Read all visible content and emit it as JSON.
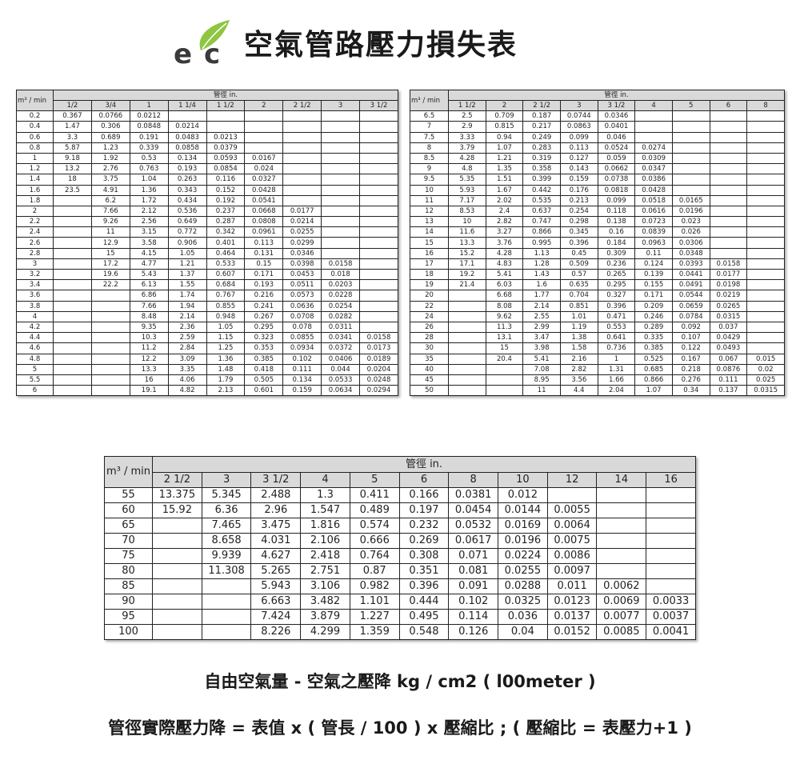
{
  "header": {
    "title": "空氣管路壓力損失表",
    "logo_text": "ec",
    "colors": {
      "logo_green": "#8dc63f",
      "logo_dark": "#3a3a3a",
      "header_fill": "#d9d9d9"
    }
  },
  "flow_label": "m³ / min",
  "diameter_label": "管徑 in.",
  "table1": {
    "columns": [
      "1/2",
      "3/4",
      "1",
      "1 1/4",
      "1 1/2",
      "2",
      "2 1/2",
      "3",
      "3 1/2"
    ],
    "rows": [
      [
        "0.2",
        "0.367",
        "0.0766",
        "0.0212",
        "",
        "",
        "",
        "",
        "",
        ""
      ],
      [
        "0.4",
        "1.47",
        "0.306",
        "0.0848",
        "0.0214",
        "",
        "",
        "",
        "",
        ""
      ],
      [
        "0.6",
        "3.3",
        "0.689",
        "0.191",
        "0.0483",
        "0.0213",
        "",
        "",
        "",
        ""
      ],
      [
        "0.8",
        "5.87",
        "1.23",
        "0.339",
        "0.0858",
        "0.0379",
        "",
        "",
        "",
        ""
      ],
      [
        "1",
        "9.18",
        "1.92",
        "0.53",
        "0.134",
        "0.0593",
        "0.0167",
        "",
        "",
        ""
      ],
      [
        "1.2",
        "13.2",
        "2.76",
        "0.763",
        "0.193",
        "0.0854",
        "0.024",
        "",
        "",
        ""
      ],
      [
        "1.4",
        "18",
        "3.75",
        "1.04",
        "0.263",
        "0.116",
        "0.0327",
        "",
        "",
        ""
      ],
      [
        "1.6",
        "23.5",
        "4.91",
        "1.36",
        "0.343",
        "0.152",
        "0.0428",
        "",
        "",
        ""
      ],
      [
        "1.8",
        "",
        "6.2",
        "1.72",
        "0.434",
        "0.192",
        "0.0541",
        "",
        "",
        ""
      ],
      [
        "2",
        "",
        "7.66",
        "2.12",
        "0.536",
        "0.237",
        "0.0668",
        "0.0177",
        "",
        ""
      ],
      [
        "2.2",
        "",
        "9.26",
        "2.56",
        "0.649",
        "0.287",
        "0.0808",
        "0.0214",
        "",
        ""
      ],
      [
        "2.4",
        "",
        "11",
        "3.15",
        "0.772",
        "0.342",
        "0.0961",
        "0.0255",
        "",
        ""
      ],
      [
        "2.6",
        "",
        "12.9",
        "3.58",
        "0.906",
        "0.401",
        "0.113",
        "0.0299",
        "",
        ""
      ],
      [
        "2.8",
        "",
        "15",
        "4.15",
        "1.05",
        "0.464",
        "0.131",
        "0.0346",
        "",
        ""
      ],
      [
        "3",
        "",
        "17.2",
        "4.77",
        "1.21",
        "0.533",
        "0.15",
        "0.0398",
        "0.0158",
        ""
      ],
      [
        "3.2",
        "",
        "19.6",
        "5.43",
        "1.37",
        "0.607",
        "0.171",
        "0.0453",
        "0.018",
        ""
      ],
      [
        "3.4",
        "",
        "22.2",
        "6.13",
        "1.55",
        "0.684",
        "0.193",
        "0.0511",
        "0.0203",
        ""
      ],
      [
        "3.6",
        "",
        "",
        "6.86",
        "1.74",
        "0.767",
        "0.216",
        "0.0573",
        "0.0228",
        ""
      ],
      [
        "3.8",
        "",
        "",
        "7.66",
        "1.94",
        "0.855",
        "0.241",
        "0.0636",
        "0.0254",
        ""
      ],
      [
        "4",
        "",
        "",
        "8.48",
        "2.14",
        "0.948",
        "0.267",
        "0.0708",
        "0.0282",
        ""
      ],
      [
        "4.2",
        "",
        "",
        "9.35",
        "2.36",
        "1.05",
        "0.295",
        "0.078",
        "0.0311",
        ""
      ],
      [
        "4.4",
        "",
        "",
        "10.3",
        "2.59",
        "1.15",
        "0.323",
        "0.0855",
        "0.0341",
        "0.0158"
      ],
      [
        "4.6",
        "",
        "",
        "11.2",
        "2.84",
        "1.25",
        "0.353",
        "0.0934",
        "0.0372",
        "0.0173"
      ],
      [
        "4.8",
        "",
        "",
        "12.2",
        "3.09",
        "1.36",
        "0.385",
        "0.102",
        "0.0406",
        "0.0189"
      ],
      [
        "5",
        "",
        "",
        "13.3",
        "3.35",
        "1.48",
        "0.418",
        "0.111",
        "0.044",
        "0.0204"
      ],
      [
        "5.5",
        "",
        "",
        "16",
        "4.06",
        "1.79",
        "0.505",
        "0.134",
        "0.0533",
        "0.0248"
      ],
      [
        "6",
        "",
        "",
        "19.1",
        "4.82",
        "2.13",
        "0.601",
        "0.159",
        "0.0634",
        "0.0294"
      ]
    ]
  },
  "table2": {
    "columns": [
      "1 1/2",
      "2",
      "2 1/2",
      "3",
      "3 1/2",
      "4",
      "5",
      "6",
      "8"
    ],
    "rows": [
      [
        "6.5",
        "2.5",
        "0.709",
        "0.187",
        "0.0744",
        "0.0346",
        "",
        "",
        "",
        ""
      ],
      [
        "7",
        "2.9",
        "0.815",
        "0.217",
        "0.0863",
        "0.0401",
        "",
        "",
        "",
        ""
      ],
      [
        "7.5",
        "3.33",
        "0.94",
        "0.249",
        "0.099",
        "0.046",
        "",
        "",
        "",
        ""
      ],
      [
        "8",
        "3.79",
        "1.07",
        "0.283",
        "0.113",
        "0.0524",
        "0.0274",
        "",
        "",
        ""
      ],
      [
        "8.5",
        "4.28",
        "1.21",
        "0.319",
        "0.127",
        "0.059",
        "0.0309",
        "",
        "",
        ""
      ],
      [
        "9",
        "4.8",
        "1.35",
        "0.358",
        "0.143",
        "0.0662",
        "0.0347",
        "",
        "",
        ""
      ],
      [
        "9.5",
        "5.35",
        "1.51",
        "0.399",
        "0.159",
        "0.0738",
        "0.0386",
        "",
        "",
        ""
      ],
      [
        "10",
        "5.93",
        "1.67",
        "0.442",
        "0.176",
        "0.0818",
        "0.0428",
        "",
        "",
        ""
      ],
      [
        "11",
        "7.17",
        "2.02",
        "0.535",
        "0.213",
        "0.099",
        "0.0518",
        "0.0165",
        "",
        ""
      ],
      [
        "12",
        "8.53",
        "2.4",
        "0.637",
        "0.254",
        "0.118",
        "0.0616",
        "0.0196",
        "",
        ""
      ],
      [
        "13",
        "10",
        "2.82",
        "0.747",
        "0.298",
        "0.138",
        "0.0723",
        "0.023",
        "",
        ""
      ],
      [
        "14",
        "11.6",
        "3.27",
        "0.866",
        "0.345",
        "0.16",
        "0.0839",
        "0.026",
        "",
        ""
      ],
      [
        "15",
        "13.3",
        "3.76",
        "0.995",
        "0.396",
        "0.184",
        "0.0963",
        "0.0306",
        "",
        ""
      ],
      [
        "16",
        "15.2",
        "4.28",
        "1.13",
        "0.45",
        "0.309",
        "0.11",
        "0.0348",
        "",
        ""
      ],
      [
        "17",
        "17.1",
        "4.83",
        "1.28",
        "0.509",
        "0.236",
        "0.124",
        "0.0393",
        "0.0158",
        ""
      ],
      [
        "18",
        "19.2",
        "5.41",
        "1.43",
        "0.57",
        "0.265",
        "0.139",
        "0.0441",
        "0.0177",
        ""
      ],
      [
        "19",
        "21.4",
        "6.03",
        "1.6",
        "0.635",
        "0.295",
        "0.155",
        "0.0491",
        "0.0198",
        ""
      ],
      [
        "20",
        "",
        "6.68",
        "1.77",
        "0.704",
        "0.327",
        "0.171",
        "0.0544",
        "0.0219",
        ""
      ],
      [
        "22",
        "",
        "8.08",
        "2.14",
        "0.851",
        "0.396",
        "0.209",
        "0.0659",
        "0.0265",
        ""
      ],
      [
        "24",
        "",
        "9.62",
        "2.55",
        "1.01",
        "0.471",
        "0.246",
        "0.0784",
        "0.0315",
        ""
      ],
      [
        "26",
        "",
        "11.3",
        "2.99",
        "1.19",
        "0.553",
        "0.289",
        "0.092",
        "0.037",
        ""
      ],
      [
        "28",
        "",
        "13.1",
        "3.47",
        "1.38",
        "0.641",
        "0.335",
        "0.107",
        "0.0429",
        ""
      ],
      [
        "30",
        "",
        "15",
        "3.98",
        "1.58",
        "0.736",
        "0.385",
        "0.122",
        "0.0493",
        ""
      ],
      [
        "35",
        "",
        "20.4",
        "5.41",
        "2.16",
        "1",
        "0.525",
        "0.167",
        "0.067",
        "0.015"
      ],
      [
        "40",
        "",
        "",
        "7.08",
        "2.82",
        "1.31",
        "0.685",
        "0.218",
        "0.0876",
        "0.02"
      ],
      [
        "45",
        "",
        "",
        "8.95",
        "3.56",
        "1.66",
        "0.866",
        "0.276",
        "0.111",
        "0.025"
      ],
      [
        "50",
        "",
        "",
        "11",
        "4.4",
        "2.04",
        "1.07",
        "0.34",
        "0.137",
        "0.0315"
      ]
    ]
  },
  "table3": {
    "columns": [
      "2 1/2",
      "3",
      "3 1/2",
      "4",
      "5",
      "6",
      "8",
      "10",
      "12",
      "14",
      "16"
    ],
    "rows": [
      [
        "55",
        "13.375",
        "5.345",
        "2.488",
        "1.3",
        "0.411",
        "0.166",
        "0.0381",
        "0.012",
        "",
        "",
        ""
      ],
      [
        "60",
        "15.92",
        "6.36",
        "2.96",
        "1.547",
        "0.489",
        "0.197",
        "0.0454",
        "0.0144",
        "0.0055",
        "",
        ""
      ],
      [
        "65",
        "",
        "7.465",
        "3.475",
        "1.816",
        "0.574",
        "0.232",
        "0.0532",
        "0.0169",
        "0.0064",
        "",
        ""
      ],
      [
        "70",
        "",
        "8.658",
        "4.031",
        "2.106",
        "0.666",
        "0.269",
        "0.0617",
        "0.0196",
        "0.0075",
        "",
        ""
      ],
      [
        "75",
        "",
        "9.939",
        "4.627",
        "2.418",
        "0.764",
        "0.308",
        "0.071",
        "0.0224",
        "0.0086",
        "",
        ""
      ],
      [
        "80",
        "",
        "11.308",
        "5.265",
        "2.751",
        "0.87",
        "0.351",
        "0.081",
        "0.0255",
        "0.0097",
        "",
        ""
      ],
      [
        "85",
        "",
        "",
        "5.943",
        "3.106",
        "0.982",
        "0.396",
        "0.091",
        "0.0288",
        "0.011",
        "0.0062",
        ""
      ],
      [
        "90",
        "",
        "",
        "6.663",
        "3.482",
        "1.101",
        "0.444",
        "0.102",
        "0.0325",
        "0.0123",
        "0.0069",
        "0.0033"
      ],
      [
        "95",
        "",
        "",
        "7.424",
        "3.879",
        "1.227",
        "0.495",
        "0.114",
        "0.036",
        "0.0137",
        "0.0077",
        "0.0037"
      ],
      [
        "100",
        "",
        "",
        "8.226",
        "4.299",
        "1.359",
        "0.548",
        "0.126",
        "0.04",
        "0.0152",
        "0.0085",
        "0.0041"
      ]
    ]
  },
  "notes": {
    "line1": "自由空氣量 - 空氣之壓降 kg / cm2 ( l00meter )",
    "line2": "管徑實際壓力降 = 表值 x ( 管長 / 100 ) x 壓縮比 ; ( 壓縮比 = 表壓力+1 )"
  }
}
